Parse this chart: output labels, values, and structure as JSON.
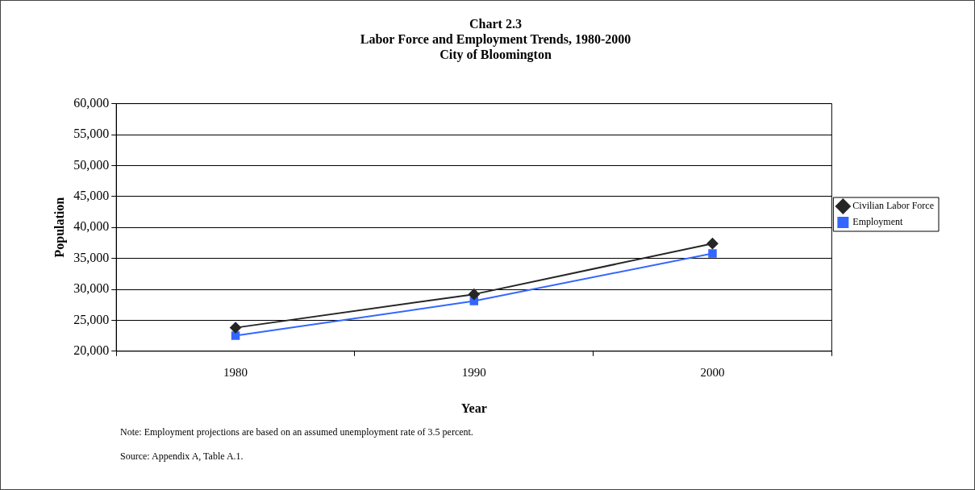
{
  "chart_data": {
    "type": "line",
    "title": "Chart 2.3",
    "subtitle": "Labor Force and Employment Trends, 1980-2000\nCity of Bloomington",
    "xlabel": "Year",
    "ylabel": "Population",
    "categories": [
      "1980",
      "1990",
      "2000"
    ],
    "series": [
      {
        "name": "Civilian Labor Force",
        "color": "#262626",
        "marker": "diamond",
        "values": [
          23800,
          29200,
          37400
        ]
      },
      {
        "name": "Employment",
        "color": "#3366ff",
        "marker": "square",
        "values": [
          22500,
          28100,
          35800
        ]
      }
    ],
    "ylim": [
      20000,
      60000
    ],
    "yticks": [
      {
        "value": 20000,
        "label": "20,000"
      },
      {
        "value": 25000,
        "label": "25,000"
      },
      {
        "value": 30000,
        "label": "30,000"
      },
      {
        "value": 35000,
        "label": "35,000"
      },
      {
        "value": 40000,
        "label": "40,000"
      },
      {
        "value": 45000,
        "label": "45,000"
      },
      {
        "value": 50000,
        "label": "50,000"
      },
      {
        "value": 55000,
        "label": "55,000"
      },
      {
        "value": 60000,
        "label": "60,000"
      }
    ],
    "grid": "y",
    "legend": "right",
    "line_style": "solid",
    "annotations": [
      "Note: Employment projections are based on an assumed unemployment rate of 3.5 percent.",
      "Source: Appendix A, Table A.1."
    ]
  }
}
